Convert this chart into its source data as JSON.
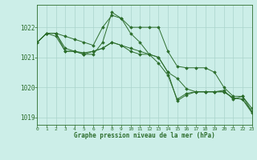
{
  "title": "Graphe pression niveau de la mer (hPa)",
  "bg_color": "#cceee8",
  "grid_color": "#aad4cc",
  "line_color": "#2d6e2d",
  "xlim": [
    0,
    23
  ],
  "ylim": [
    1018.75,
    1022.75
  ],
  "yticks": [
    1019,
    1020,
    1021,
    1022
  ],
  "xticks": [
    0,
    1,
    2,
    3,
    4,
    5,
    6,
    7,
    8,
    9,
    10,
    11,
    12,
    13,
    14,
    15,
    16,
    17,
    18,
    19,
    20,
    21,
    22,
    23
  ],
  "lines": [
    {
      "x": [
        0,
        1,
        2,
        3,
        4,
        5,
        6,
        7,
        8,
        9,
        10,
        11,
        12,
        13,
        14,
        15,
        16,
        17,
        18,
        19,
        20,
        21,
        22,
        23
      ],
      "y": [
        1021.5,
        1021.8,
        1021.8,
        1021.7,
        1021.6,
        1021.5,
        1021.4,
        1022.0,
        1022.4,
        1022.3,
        1022.0,
        1022.0,
        1022.0,
        1022.0,
        1021.2,
        1020.7,
        1020.65,
        1020.65,
        1020.65,
        1020.5,
        1020.0,
        1019.7,
        1019.7,
        1019.3
      ]
    },
    {
      "x": [
        0,
        1,
        2,
        3,
        4,
        5,
        6,
        7,
        8,
        9,
        10,
        11,
        12,
        13,
        14,
        15,
        16,
        17,
        18,
        19,
        20,
        21,
        22,
        23
      ],
      "y": [
        1021.5,
        1021.8,
        1021.7,
        1021.2,
        1021.2,
        1021.1,
        1021.1,
        1021.5,
        1022.5,
        1022.3,
        1021.8,
        1021.5,
        1021.1,
        1020.8,
        1020.4,
        1019.6,
        1019.8,
        1019.85,
        1019.85,
        1019.85,
        1019.9,
        1019.6,
        1019.7,
        1019.2
      ]
    },
    {
      "x": [
        0,
        1,
        2,
        3,
        4,
        5,
        6,
        7,
        8,
        9,
        10,
        11,
        12,
        13,
        14,
        15,
        16,
        17,
        18,
        19,
        20,
        21,
        22,
        23
      ],
      "y": [
        1021.5,
        1021.8,
        1021.8,
        1021.2,
        1021.2,
        1021.1,
        1021.2,
        1021.3,
        1021.5,
        1021.4,
        1021.2,
        1021.1,
        1021.1,
        1021.0,
        1020.5,
        1019.55,
        1019.75,
        1019.85,
        1019.85,
        1019.85,
        1019.85,
        1019.65,
        1019.6,
        1019.2
      ]
    },
    {
      "x": [
        0,
        1,
        2,
        3,
        4,
        5,
        6,
        7,
        8,
        9,
        10,
        11,
        12,
        13,
        14,
        15,
        16,
        17,
        18,
        19,
        20,
        21,
        22,
        23
      ],
      "y": [
        1021.5,
        1021.8,
        1021.8,
        1021.3,
        1021.2,
        1021.15,
        1021.2,
        1021.3,
        1021.5,
        1021.4,
        1021.3,
        1021.2,
        1021.1,
        1021.0,
        1020.5,
        1020.3,
        1019.95,
        1019.85,
        1019.85,
        1019.85,
        1019.85,
        1019.65,
        1019.6,
        1019.15
      ]
    }
  ]
}
